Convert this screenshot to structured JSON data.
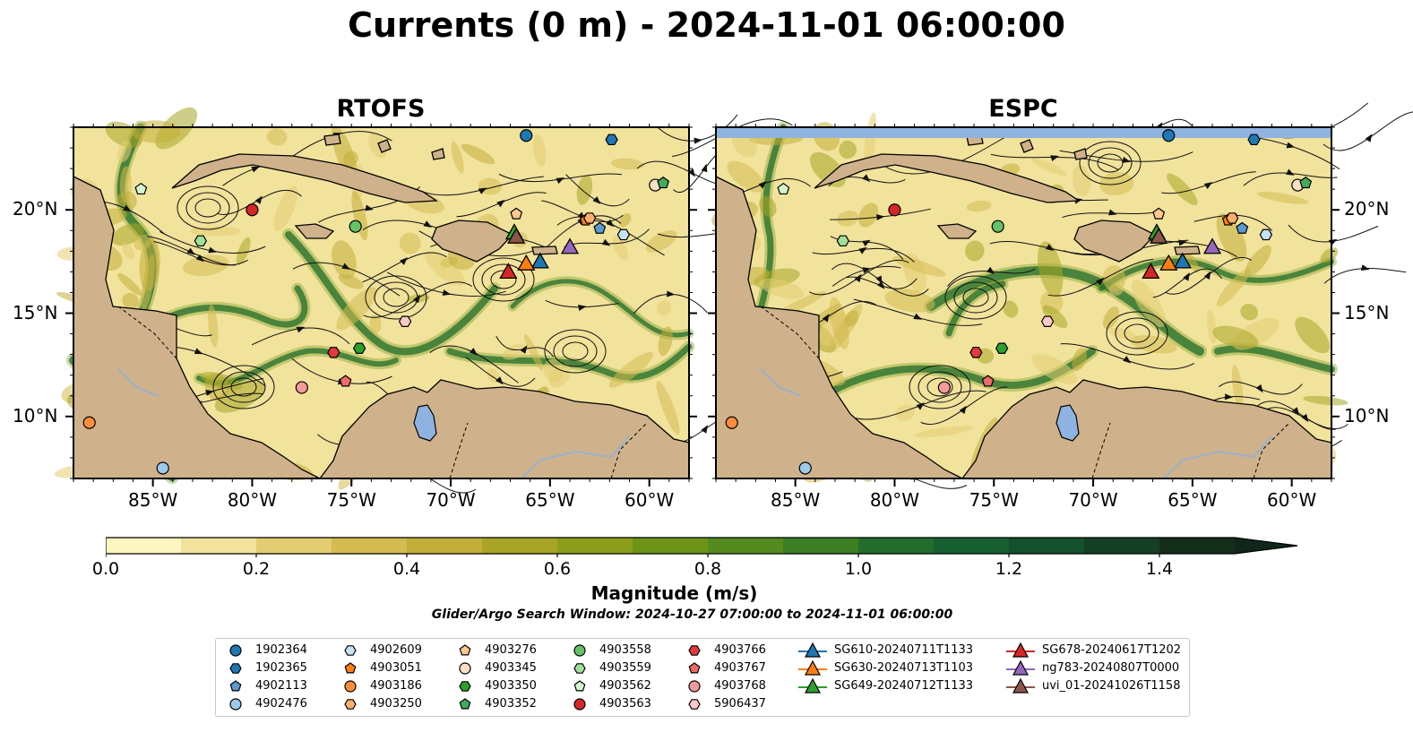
{
  "figure": {
    "title": "Currents (0 m) - 2024-11-01 06:00:00",
    "search_window": "Glider/Argo Search Window: 2024-10-27 07:00:00 to 2024-11-01 06:00:00"
  },
  "map_extent": {
    "lon": [
      -89,
      -58
    ],
    "lat": [
      7,
      24
    ]
  },
  "axes": {
    "lon_ticks": [
      {
        "value": -85,
        "label": "85°W"
      },
      {
        "value": -80,
        "label": "80°W"
      },
      {
        "value": -75,
        "label": "75°W"
      },
      {
        "value": -70,
        "label": "70°W"
      },
      {
        "value": -65,
        "label": "65°W"
      },
      {
        "value": -60,
        "label": "60°W"
      }
    ],
    "lat_ticks": [
      {
        "value": 20,
        "label": "20°N"
      },
      {
        "value": 15,
        "label": "15°N"
      },
      {
        "value": 10,
        "label": "10°N"
      }
    ]
  },
  "panels": [
    {
      "id": "rtofs",
      "title": "RTOFS",
      "top_band": false
    },
    {
      "id": "espc",
      "title": "ESPC",
      "top_band": true
    }
  ],
  "colorbar": {
    "label": "Magnitude (m/s)",
    "min": 0.0,
    "max": 1.5,
    "step": 0.1,
    "extend": "max",
    "ticks": [
      "0.0",
      "0.2",
      "0.4",
      "0.6",
      "0.8",
      "1.0",
      "1.2",
      "1.4"
    ],
    "colors": [
      "#fdf6c0",
      "#f1e29c",
      "#e3cd73",
      "#d4bb52",
      "#c3ae3b",
      "#a8a526",
      "#8c9e1c",
      "#6e9417",
      "#558b1e",
      "#3c7e24",
      "#226d2c",
      "#16602f",
      "#13502b",
      "#143f24",
      "#142e1b"
    ],
    "arrow_color": "#10261a"
  },
  "legend": {
    "argo": [
      {
        "id": "1902364",
        "marker": "circle",
        "color": "#1f77b4"
      },
      {
        "id": "1902365",
        "marker": "hexagon",
        "color": "#1f77b4"
      },
      {
        "id": "4902113",
        "marker": "pentagon",
        "color": "#5b9ad0"
      },
      {
        "id": "4902476",
        "marker": "circle",
        "color": "#9ecae9"
      },
      {
        "id": "4902609",
        "marker": "hexagon",
        "color": "#c6e2f5"
      },
      {
        "id": "4903051",
        "marker": "pentagon",
        "color": "#ff7f0e"
      },
      {
        "id": "4903186",
        "marker": "circle",
        "color": "#fd8d3c"
      },
      {
        "id": "4903250",
        "marker": "hexagon",
        "color": "#fdae6b"
      },
      {
        "id": "4903276",
        "marker": "pentagon",
        "color": "#fdc98e"
      },
      {
        "id": "4903345",
        "marker": "circle",
        "color": "#fde0c5"
      },
      {
        "id": "4903350",
        "marker": "hexagon",
        "color": "#2ca02c"
      },
      {
        "id": "4903352",
        "marker": "pentagon",
        "color": "#41ab5d"
      },
      {
        "id": "4903558",
        "marker": "circle",
        "color": "#66c266"
      },
      {
        "id": "4903559",
        "marker": "hexagon",
        "color": "#a1e09a"
      },
      {
        "id": "4903562",
        "marker": "pentagon",
        "color": "#d3f5cf"
      },
      {
        "id": "4903563",
        "marker": "circle",
        "color": "#d62728"
      },
      {
        "id": "4903766",
        "marker": "hexagon",
        "color": "#e03a3c"
      },
      {
        "id": "4903767",
        "marker": "pentagon",
        "color": "#f06a6a"
      },
      {
        "id": "4903768",
        "marker": "circle",
        "color": "#f59a9a"
      },
      {
        "id": "5906437",
        "marker": "hexagon",
        "color": "#fcc8c8"
      }
    ],
    "gliders": [
      {
        "id": "SG610-20240711T1133",
        "color": "#1f77b4"
      },
      {
        "id": "SG630-20240713T1103",
        "color": "#ff7f0e"
      },
      {
        "id": "SG649-20240712T1133",
        "color": "#2ca02c"
      },
      {
        "id": "SG678-20240617T1202",
        "color": "#d62728"
      },
      {
        "id": "ng783-20240807T0000",
        "color": "#9467bd"
      },
      {
        "id": "uvi_01-20241026T1158",
        "color": "#8c564b"
      }
    ]
  },
  "argo_positions": {
    "1902364": [
      -66.2,
      23.6
    ],
    "1902365": [
      -61.9,
      23.4
    ],
    "4902113": [
      -62.5,
      19.1
    ],
    "4902476": [
      -84.5,
      7.5
    ],
    "4902609": [
      -61.3,
      18.8
    ],
    "4903051": [
      -63.2,
      19.5
    ],
    "4903186": [
      -88.2,
      9.7
    ],
    "4903250": [
      -63.0,
      19.6
    ],
    "4903276": [
      -66.7,
      19.8
    ],
    "4903345": [
      -59.7,
      21.2
    ],
    "4903350": [
      -74.6,
      13.3
    ],
    "4903352": [
      -59.3,
      21.3
    ],
    "4903558": [
      -74.8,
      19.2
    ],
    "4903559": [
      -82.6,
      18.5
    ],
    "4903562": [
      -85.6,
      21.0
    ],
    "4903563": [
      -80.0,
      20.0
    ],
    "4903766": [
      -75.9,
      13.1
    ],
    "4903767": [
      -75.3,
      11.7
    ],
    "4903768": [
      -77.5,
      11.4
    ],
    "5906437": [
      -72.3,
      14.6
    ]
  },
  "glider_positions": {
    "SG610-20240711T1133": [
      -65.5,
      17.5
    ],
    "SG630-20240713T1103": [
      -66.2,
      17.4
    ],
    "SG649-20240712T1133": [
      -66.8,
      18.9
    ],
    "SG678-20240617T1202": [
      -67.1,
      17.0
    ],
    "ng783-20240807T0000": [
      -64.0,
      18.2
    ],
    "uvi_01-20241026T1158": [
      -66.7,
      18.7
    ]
  }
}
